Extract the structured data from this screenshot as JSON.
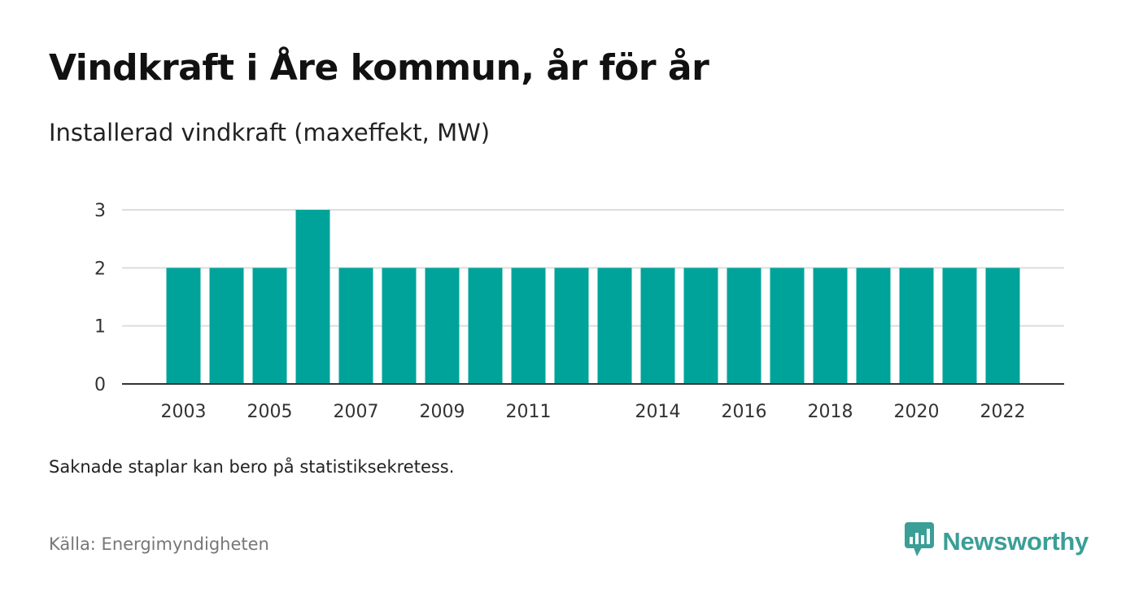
{
  "header": {
    "title": "Vindkraft i Åre kommun, år för år",
    "subtitle": "Installerad vindkraft (maxeffekt, MW)"
  },
  "footer": {
    "note": "Saknade staplar kan bero på statistiksekretess.",
    "source": "Källa: Energimyndigheten",
    "brand": "Newsworthy"
  },
  "colors": {
    "bar": "#00a39a",
    "brand": "#3a9f96",
    "grid": "#dddddd",
    "axis": "#333333"
  },
  "chart_data": {
    "type": "bar",
    "title": "Vindkraft i Åre kommun, år för år",
    "subtitle": "Installerad vindkraft (maxeffekt, MW)",
    "xlabel": "",
    "ylabel": "",
    "categories": [
      "2003",
      "2004",
      "2005",
      "2006",
      "2007",
      "2008",
      "2009",
      "2010",
      "2011",
      "2012",
      "2013",
      "2014",
      "2015",
      "2016",
      "2017",
      "2018",
      "2019",
      "2020",
      "2021",
      "2022"
    ],
    "values": [
      2,
      2,
      2,
      3,
      2,
      2,
      2,
      2,
      2,
      2,
      2,
      2,
      2,
      2,
      2,
      2,
      2,
      2,
      2,
      2
    ],
    "x_tick_labels": [
      "2003",
      "2005",
      "2007",
      "2009",
      "2011",
      "2014",
      "2016",
      "2018",
      "2020",
      "2022"
    ],
    "y_ticks": [
      0,
      1,
      2,
      3
    ],
    "ylim": [
      0,
      3
    ],
    "grid": true,
    "legend": "none"
  }
}
